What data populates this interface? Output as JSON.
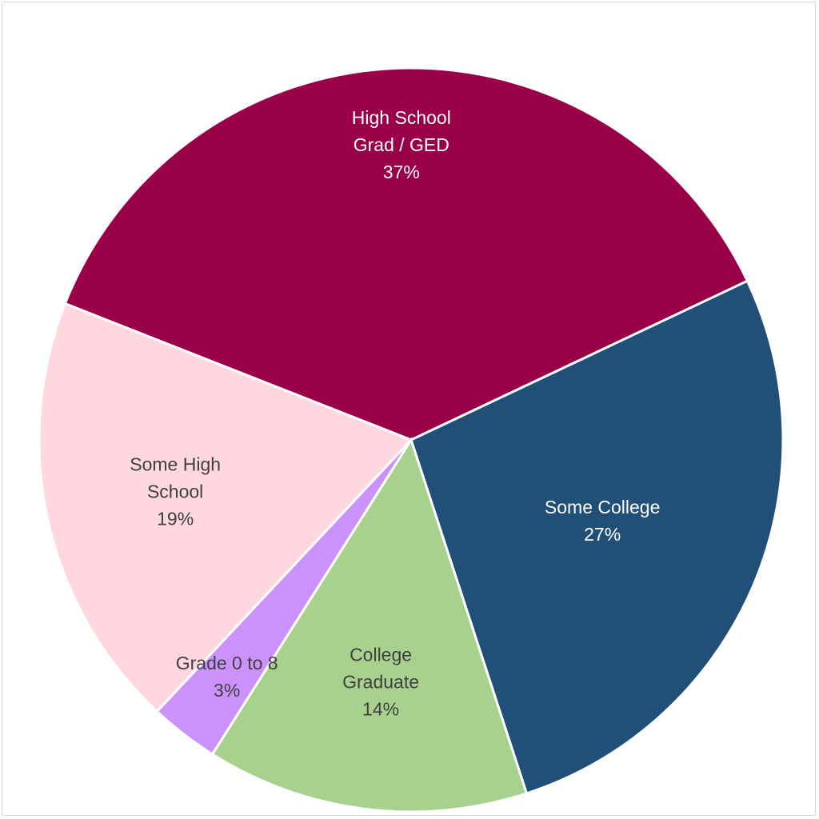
{
  "chart_data": {
    "type": "pie",
    "title": "",
    "slices": [
      {
        "label_lines": [
          "High School",
          "Grad / GED"
        ],
        "percent_label": "37%",
        "value": 37,
        "color": "#990047",
        "text_color": "#ffffff"
      },
      {
        "label_lines": [
          "Some College"
        ],
        "percent_label": "27%",
        "value": 27,
        "color": "#204f78",
        "text_color": "#ffffff"
      },
      {
        "label_lines": [
          "College",
          "Graduate"
        ],
        "percent_label": "14%",
        "value": 14,
        "color": "#a9d18e",
        "text_color": "#404040"
      },
      {
        "label_lines": [
          "Grade 0 to 8"
        ],
        "percent_label": "3%",
        "value": 3,
        "color": "#cc92fb",
        "text_color": "#404040"
      },
      {
        "label_lines": [
          "Some High",
          "School"
        ],
        "percent_label": "19%",
        "value": 19,
        "color": "#ffd7de",
        "text_color": "#404040"
      }
    ],
    "legend": "none"
  }
}
